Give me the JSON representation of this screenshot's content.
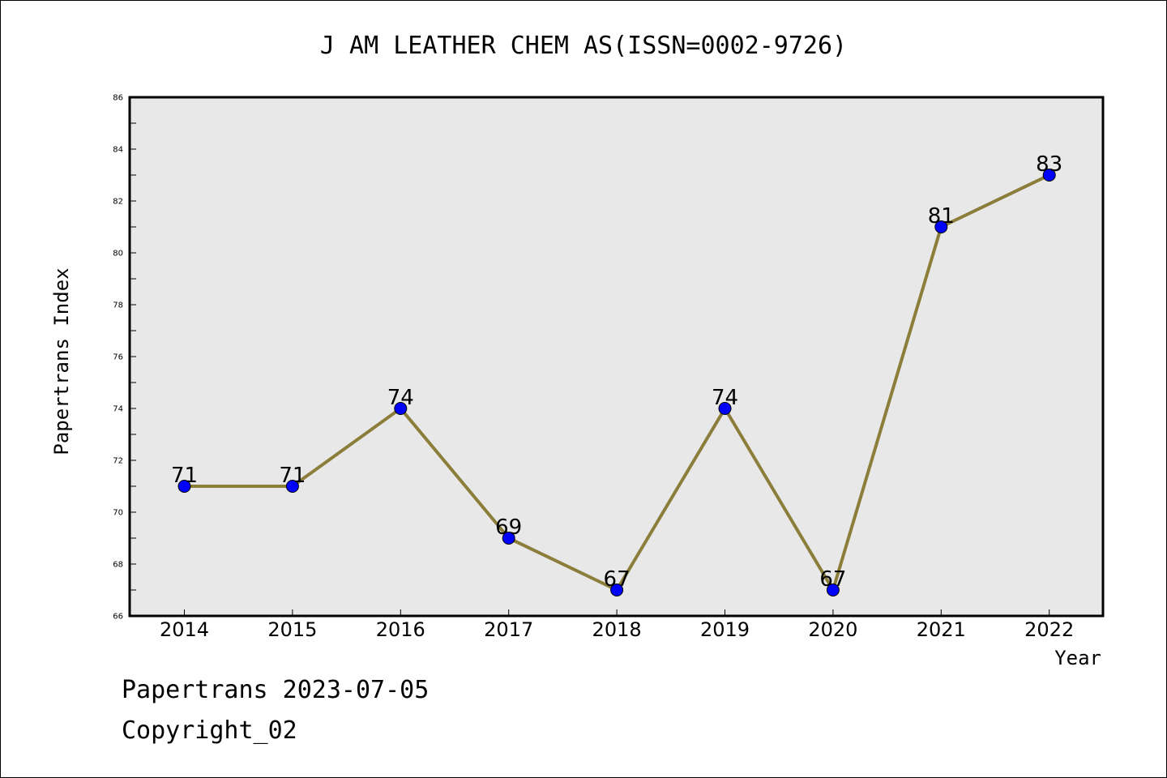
{
  "chart_data": {
    "type": "line",
    "title": "J AM LEATHER CHEM AS(ISSN=0002-9726)",
    "xlabel": "Year",
    "ylabel": "Papertrans Index",
    "categories": [
      "2014",
      "2015",
      "2016",
      "2017",
      "2018",
      "2019",
      "2020",
      "2021",
      "2022"
    ],
    "series": [
      {
        "values": [
          71,
          71,
          74,
          69,
          67,
          74,
          67,
          81,
          83
        ]
      }
    ],
    "data_labels": [
      "71",
      "71",
      "74",
      "69",
      "67",
      "74",
      "67",
      "81",
      "83"
    ],
    "ylim": [
      66,
      86
    ],
    "y_ticks": [
      "66",
      "68",
      "70",
      "72",
      "74",
      "76",
      "78",
      "80",
      "82",
      "84",
      "86"
    ],
    "grid": false,
    "colors": {
      "plot_background": "#e8e8e8",
      "line": "#8b7d3a",
      "marker": "#0000ff"
    }
  },
  "footer": {
    "source": "Papertrans 2023-07-05",
    "copyright": "Copyright_02"
  }
}
